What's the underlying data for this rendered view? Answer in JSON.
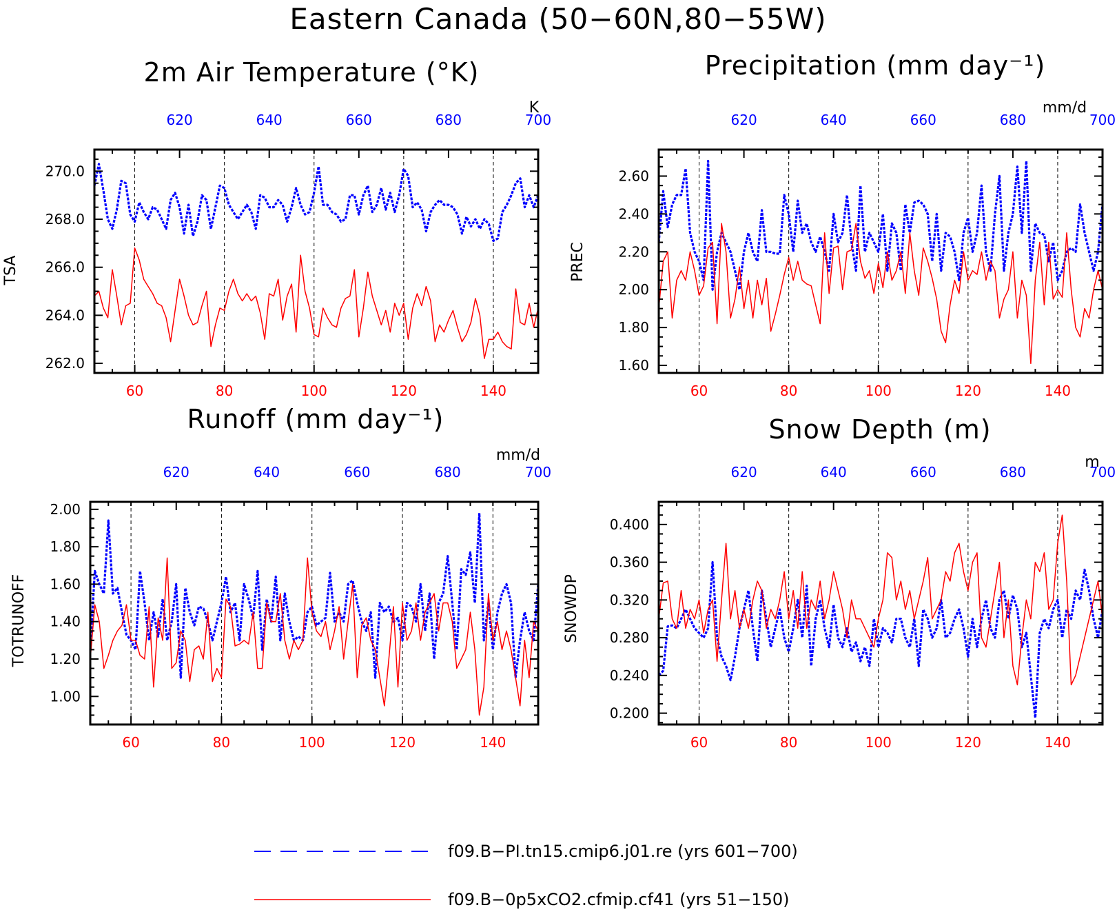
{
  "title": "Eastern Canada (50−60N,80−55W)",
  "colors": {
    "bottom_series": "#ff0000",
    "top_series": "#0000ff",
    "axes": "#000000"
  },
  "legend": [
    {
      "label": "f09.B−PI.tn15.cmip6.j01.re (yrs 601−700)",
      "color": "#0000ff",
      "style": "dashed"
    },
    {
      "label": "f09.B−0p5xCO2.cfmip.cf41 (yrs 51−150)",
      "color": "#ff0000",
      "style": "solid"
    }
  ],
  "chart_data": [
    {
      "type": "line",
      "title": "2m Air Temperature (°K)",
      "ylabel": "TSA",
      "unit": "K",
      "ylim": [
        261.6,
        270.9
      ],
      "yticks": [
        262.0,
        264.0,
        266.0,
        268.0,
        270.0
      ],
      "ytick_labels": [
        "262.0",
        "264.0",
        "266.0",
        "268.0",
        "270.0"
      ],
      "x_bottom": {
        "range": [
          51,
          150
        ],
        "ticks": [
          60,
          80,
          100,
          120,
          140
        ]
      },
      "x_top": {
        "range": [
          601,
          700
        ],
        "ticks": [
          620,
          640,
          660,
          680,
          700
        ]
      },
      "grid": "vertical dashed",
      "series": [
        {
          "name": "f09.B−PI.tn15.cmip6.j01.re (yrs 601−700)",
          "axis": "top",
          "style": "dashed",
          "values": [
            269.4,
            270.3,
            269.2,
            268.0,
            267.6,
            268.4,
            269.6,
            269.5,
            268.2,
            267.9,
            268.7,
            268.3,
            268.0,
            268.5,
            268.4,
            268.0,
            267.6,
            268.8,
            269.1,
            268.5,
            267.4,
            268.6,
            267.3,
            267.9,
            269.0,
            268.8,
            267.6,
            268.5,
            269.4,
            269.3,
            268.6,
            268.3,
            268.0,
            268.3,
            268.6,
            268.3,
            267.6,
            269.0,
            268.9,
            268.5,
            268.5,
            268.8,
            268.6,
            267.9,
            268.5,
            269.3,
            268.6,
            268.2,
            268.3,
            269.1,
            270.2,
            268.6,
            268.6,
            268.3,
            268.2,
            267.9,
            268.0,
            269.0,
            269.0,
            268.2,
            269.0,
            269.4,
            268.3,
            268.6,
            269.3,
            268.4,
            269.1,
            268.3,
            269.0,
            270.1,
            269.8,
            268.5,
            268.7,
            268.4,
            267.5,
            268.3,
            268.6,
            268.8,
            268.6,
            268.6,
            268.5,
            268.2,
            267.4,
            268.1,
            267.7,
            268.0,
            267.6,
            268.0,
            267.8,
            267.1,
            267.2,
            268.3,
            268.6,
            269.0,
            269.5,
            269.7,
            268.5,
            269.0,
            268.5,
            269.0
          ]
        },
        {
          "name": "f09.B−0p5xCO2.cfmip.cf41 (yrs 51−150)",
          "axis": "bottom",
          "style": "solid",
          "values": [
            264.8,
            265.0,
            264.3,
            263.9,
            265.9,
            264.8,
            263.6,
            264.4,
            264.5,
            266.8,
            266.3,
            265.5,
            265.2,
            264.9,
            264.5,
            264.4,
            263.9,
            262.9,
            264.2,
            265.5,
            264.8,
            264.0,
            263.6,
            263.7,
            264.4,
            265.0,
            262.7,
            263.6,
            264.3,
            264.2,
            265.0,
            265.5,
            264.9,
            264.6,
            264.9,
            264.6,
            264.8,
            264.1,
            263.0,
            264.9,
            264.8,
            265.5,
            263.8,
            264.8,
            265.3,
            263.3,
            266.5,
            265.0,
            264.3,
            263.2,
            263.1,
            264.3,
            263.9,
            263.6,
            263.5,
            264.3,
            264.7,
            264.8,
            265.9,
            263.1,
            264.3,
            265.8,
            264.8,
            264.2,
            263.6,
            264.2,
            263.3,
            264.5,
            264.0,
            264.5,
            263.0,
            264.3,
            264.9,
            264.4,
            265.2,
            264.6,
            262.9,
            263.6,
            263.3,
            263.8,
            264.2,
            263.5,
            262.9,
            263.2,
            263.7,
            264.7,
            264.0,
            262.2,
            263.0,
            263.0,
            263.3,
            262.9,
            262.7,
            262.6,
            265.1,
            263.7,
            263.6,
            264.5,
            263.5,
            264.3
          ]
        }
      ]
    },
    {
      "type": "line",
      "title": "Precipitation (mm day⁻¹)",
      "ylabel": "PREC",
      "unit": "mm/d",
      "ylim": [
        1.56,
        2.74
      ],
      "yticks": [
        1.6,
        1.8,
        2.0,
        2.2,
        2.4,
        2.6
      ],
      "ytick_labels": [
        "1.60",
        "1.80",
        "2.00",
        "2.20",
        "2.40",
        "2.60"
      ],
      "x_bottom": {
        "range": [
          51,
          150
        ],
        "ticks": [
          60,
          80,
          100,
          120,
          140
        ]
      },
      "x_top": {
        "range": [
          601,
          700
        ],
        "ticks": [
          620,
          640,
          660,
          680,
          700
        ]
      },
      "grid": "vertical dashed",
      "series": [
        {
          "name": "f09.B−PI.tn15.cmip6.j01.re (yrs 601−700)",
          "axis": "top",
          "style": "dashed",
          "values": [
            2.25,
            2.52,
            2.33,
            2.45,
            2.5,
            2.5,
            2.64,
            2.3,
            2.2,
            2.15,
            2.05,
            2.68,
            2.0,
            2.2,
            2.3,
            2.25,
            2.2,
            2.1,
            2.0,
            2.2,
            2.3,
            2.2,
            2.15,
            2.42,
            2.2,
            2.2,
            2.19,
            2.19,
            2.5,
            2.4,
            2.2,
            2.47,
            2.3,
            2.35,
            2.25,
            2.2,
            2.28,
            2.2,
            2.1,
            2.4,
            2.25,
            2.3,
            2.5,
            2.25,
            2.1,
            2.55,
            2.2,
            2.3,
            2.25,
            2.2,
            2.4,
            2.1,
            2.35,
            2.3,
            2.1,
            2.45,
            2.3,
            2.46,
            2.47,
            2.45,
            2.4,
            2.15,
            2.4,
            2.1,
            2.3,
            2.28,
            2.2,
            2.05,
            2.3,
            2.38,
            2.2,
            2.3,
            2.55,
            2.2,
            2.1,
            2.4,
            2.6,
            2.1,
            2.3,
            2.4,
            2.65,
            2.3,
            2.68,
            2.1,
            2.35,
            2.3,
            2.29,
            2.15,
            2.25,
            2.05,
            2.1,
            2.2,
            2.22,
            2.2,
            2.45,
            2.3,
            2.2,
            2.1,
            2.2,
            2.45
          ]
        },
        {
          "name": "f09.B−0p5xCO2.cfmip.cf41 (yrs 51−150)",
          "axis": "bottom",
          "style": "solid",
          "values": [
            1.9,
            2.15,
            2.2,
            1.85,
            2.05,
            2.1,
            2.05,
            2.2,
            2.1,
            1.97,
            2.02,
            2.22,
            2.25,
            1.82,
            2.35,
            2.2,
            1.85,
            1.95,
            2.12,
            1.9,
            2.05,
            1.85,
            2.05,
            1.92,
            2.06,
            1.78,
            1.87,
            1.97,
            2.08,
            2.17,
            2.05,
            2.15,
            2.05,
            2.03,
            2.02,
            1.92,
            1.82,
            2.3,
            1.98,
            2.22,
            2.23,
            2.0,
            2.2,
            2.21,
            2.35,
            2.15,
            2.06,
            2.1,
            1.98,
            2.14,
            2.01,
            2.2,
            2.05,
            2.1,
            2.2,
            1.98,
            2.3,
            2.1,
            1.97,
            2.22,
            2.15,
            2.06,
            1.95,
            1.78,
            1.72,
            1.92,
            2.05,
            1.98,
            2.2,
            2.05,
            2.1,
            2.08,
            2.2,
            2.05,
            2.15,
            2.1,
            1.85,
            1.95,
            2.0,
            2.2,
            1.85,
            2.05,
            1.97,
            1.61,
            2.05,
            2.25,
            1.92,
            2.25,
            1.95,
            2.0,
            1.96,
            2.3,
            2.0,
            1.8,
            1.75,
            1.9,
            1.85,
            2.0,
            2.1,
            2.0
          ]
        }
      ]
    },
    {
      "type": "line",
      "title": "Runoff (mm day⁻¹)",
      "ylabel": "TOTRUNOFF",
      "unit": "mm/d",
      "ylim": [
        0.85,
        2.04
      ],
      "yticks": [
        1.0,
        1.2,
        1.4,
        1.6,
        1.8,
        2.0
      ],
      "ytick_labels": [
        "1.00",
        "1.20",
        "1.40",
        "1.60",
        "1.80",
        "2.00"
      ],
      "x_bottom": {
        "range": [
          51,
          150
        ],
        "ticks": [
          60,
          80,
          100,
          120,
          140
        ]
      },
      "x_top": {
        "range": [
          601,
          700
        ],
        "ticks": [
          620,
          640,
          660,
          680,
          700
        ]
      },
      "grid": "vertical dashed",
      "series": [
        {
          "name": "f09.B−PI.tn15.cmip6.j01.re (yrs 601−700)",
          "axis": "top",
          "style": "dashed",
          "values": [
            1.25,
            1.67,
            1.6,
            1.55,
            1.94,
            1.55,
            1.58,
            1.45,
            1.33,
            1.3,
            1.25,
            1.67,
            1.5,
            1.3,
            1.45,
            1.32,
            1.52,
            1.3,
            1.4,
            1.6,
            1.1,
            1.58,
            1.45,
            1.38,
            1.48,
            1.47,
            1.4,
            1.3,
            1.4,
            1.5,
            1.64,
            1.45,
            1.5,
            1.3,
            1.6,
            1.52,
            1.42,
            1.67,
            1.25,
            1.52,
            1.4,
            1.64,
            1.3,
            1.55,
            1.4,
            1.3,
            1.32,
            1.3,
            1.45,
            1.48,
            1.38,
            1.4,
            1.42,
            1.66,
            1.4,
            1.45,
            1.4,
            1.6,
            1.62,
            1.5,
            1.4,
            1.35,
            1.45,
            1.1,
            1.5,
            1.45,
            1.48,
            1.4,
            1.42,
            1.3,
            1.5,
            1.48,
            1.4,
            1.6,
            1.35,
            1.55,
            1.2,
            1.5,
            1.55,
            1.75,
            1.5,
            1.25,
            1.68,
            1.65,
            1.77,
            1.5,
            1.98,
            1.3,
            1.5,
            1.25,
            1.45,
            1.55,
            1.6,
            1.5,
            1.1,
            1.3,
            1.45,
            1.35,
            1.3,
            1.6
          ]
        },
        {
          "name": "f09.B−0p5xCO2.cfmip.cf41 (yrs 51−150)",
          "axis": "bottom",
          "style": "solid",
          "values": [
            1.2,
            1.49,
            1.4,
            1.15,
            1.22,
            1.3,
            1.35,
            1.38,
            1.49,
            1.3,
            1.3,
            1.22,
            1.2,
            1.48,
            1.05,
            1.42,
            1.3,
            1.74,
            1.15,
            1.18,
            1.35,
            1.3,
            1.08,
            1.25,
            1.27,
            1.2,
            1.45,
            1.08,
            1.15,
            1.1,
            1.52,
            1.48,
            1.27,
            1.28,
            1.3,
            1.28,
            1.45,
            1.15,
            1.15,
            1.5,
            1.4,
            1.4,
            1.55,
            1.3,
            1.2,
            1.3,
            1.25,
            1.3,
            1.74,
            1.45,
            1.35,
            1.32,
            1.4,
            1.25,
            1.35,
            1.48,
            1.2,
            1.4,
            1.6,
            1.1,
            1.38,
            1.42,
            1.3,
            1.25,
            1.1,
            0.95,
            1.2,
            1.48,
            1.05,
            1.5,
            1.3,
            1.35,
            1.5,
            1.3,
            1.45,
            1.5,
            1.55,
            1.35,
            1.5,
            1.5,
            1.4,
            1.15,
            1.2,
            1.25,
            1.45,
            1.25,
            0.9,
            1.05,
            1.55,
            1.3,
            1.4,
            1.25,
            1.35,
            1.25,
            1.1,
            0.95,
            1.3,
            1.1,
            1.4,
            1.35
          ]
        }
      ]
    },
    {
      "type": "line",
      "title": "Snow Depth (m)",
      "ylabel": "SNOWDP",
      "unit": "m",
      "ylim": [
        0.188,
        0.424
      ],
      "yticks": [
        0.2,
        0.24,
        0.28,
        0.32,
        0.36,
        0.4
      ],
      "ytick_labels": [
        "0.200",
        "0.240",
        "0.280",
        "0.320",
        "0.360",
        "0.400"
      ],
      "x_bottom": {
        "range": [
          51,
          150
        ],
        "ticks": [
          60,
          80,
          100,
          120,
          140
        ]
      },
      "x_top": {
        "range": [
          601,
          700
        ],
        "ticks": [
          620,
          640,
          660,
          680,
          700
        ]
      },
      "grid": "vertical dashed",
      "series": [
        {
          "name": "f09.B−PI.tn15.cmip6.j01.re (yrs 601−700)",
          "axis": "top",
          "style": "dashed",
          "values": [
            0.24,
            0.245,
            0.292,
            0.293,
            0.29,
            0.3,
            0.31,
            0.3,
            0.29,
            0.285,
            0.28,
            0.29,
            0.36,
            0.28,
            0.26,
            0.25,
            0.235,
            0.26,
            0.29,
            0.31,
            0.33,
            0.29,
            0.255,
            0.33,
            0.3,
            0.27,
            0.29,
            0.31,
            0.28,
            0.265,
            0.29,
            0.32,
            0.28,
            0.335,
            0.25,
            0.3,
            0.32,
            0.29,
            0.27,
            0.315,
            0.28,
            0.27,
            0.29,
            0.265,
            0.275,
            0.255,
            0.27,
            0.25,
            0.3,
            0.27,
            0.29,
            0.285,
            0.275,
            0.3,
            0.3,
            0.28,
            0.27,
            0.3,
            0.25,
            0.31,
            0.3,
            0.28,
            0.29,
            0.32,
            0.28,
            0.285,
            0.3,
            0.31,
            0.29,
            0.26,
            0.3,
            0.27,
            0.3,
            0.32,
            0.29,
            0.28,
            0.32,
            0.33,
            0.3,
            0.325,
            0.31,
            0.27,
            0.285,
            0.24,
            0.195,
            0.285,
            0.3,
            0.29,
            0.31,
            0.32,
            0.28,
            0.31,
            0.3,
            0.33,
            0.32,
            0.352,
            0.33,
            0.3,
            0.28,
            0.31
          ]
        },
        {
          "name": "f09.B−0p5xCO2.cfmip.cf41 (yrs 51−150)",
          "axis": "bottom",
          "style": "solid",
          "values": [
            0.3,
            0.338,
            0.34,
            0.3,
            0.29,
            0.33,
            0.29,
            0.31,
            0.3,
            0.32,
            0.285,
            0.31,
            0.32,
            0.255,
            0.32,
            0.38,
            0.3,
            0.33,
            0.29,
            0.31,
            0.29,
            0.32,
            0.34,
            0.33,
            0.29,
            0.31,
            0.3,
            0.32,
            0.35,
            0.3,
            0.33,
            0.29,
            0.35,
            0.29,
            0.32,
            0.31,
            0.34,
            0.3,
            0.32,
            0.35,
            0.33,
            0.31,
            0.28,
            0.32,
            0.3,
            0.3,
            0.29,
            0.28,
            0.27,
            0.3,
            0.32,
            0.37,
            0.365,
            0.32,
            0.34,
            0.31,
            0.33,
            0.3,
            0.32,
            0.34,
            0.365,
            0.3,
            0.31,
            0.32,
            0.35,
            0.34,
            0.37,
            0.38,
            0.35,
            0.33,
            0.36,
            0.37,
            0.28,
            0.27,
            0.3,
            0.33,
            0.36,
            0.28,
            0.32,
            0.25,
            0.23,
            0.28,
            0.32,
            0.3,
            0.36,
            0.35,
            0.37,
            0.31,
            0.32,
            0.38,
            0.41,
            0.34,
            0.23,
            0.24,
            0.26,
            0.28,
            0.3,
            0.32,
            0.34,
            0.3
          ]
        }
      ]
    }
  ]
}
